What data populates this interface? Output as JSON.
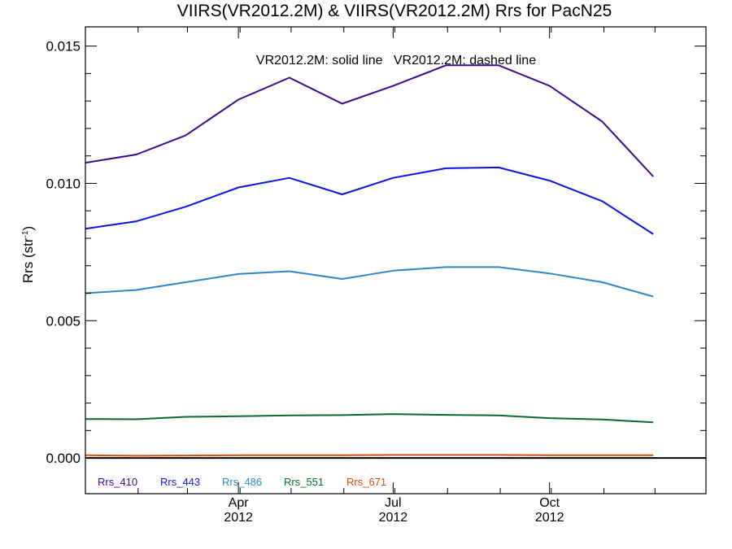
{
  "chart_data": {
    "type": "line",
    "title": "VIIRS(VR2012.2M) & VIIRS(VR2012.2M)  Rrs for PacN25",
    "annotation": "VR2012.2M: solid line   VR2012.2M: dashed line",
    "ylabel": "Rrs (str",
    "ylabel_sup": "-1",
    "ylabel_close": ")",
    "ylim": [
      -0.0013,
      0.0157
    ],
    "xlim": [
      0,
      365
    ],
    "yticks": [
      {
        "v": 0.0,
        "label": "0.000"
      },
      {
        "v": 0.005,
        "label": "0.005"
      },
      {
        "v": 0.01,
        "label": "0.010"
      },
      {
        "v": 0.015,
        "label": "0.015"
      }
    ],
    "xticks": [
      {
        "v": 90,
        "month": "Apr",
        "year": "2012"
      },
      {
        "v": 181,
        "month": "Jul",
        "year": "2012"
      },
      {
        "v": 273,
        "month": "Oct",
        "year": "2012"
      }
    ],
    "x_day_of_year_2012": [
      0,
      30,
      59,
      90,
      120,
      151,
      181,
      212,
      243,
      273,
      304,
      334,
      365
    ],
    "series": [
      {
        "name": "Rrs_410",
        "color": "#3a0a8c",
        "values": [
          0.01075,
          0.01105,
          0.01175,
          0.01305,
          0.01385,
          0.0129,
          0.01355,
          0.0143,
          0.0143,
          0.01355,
          0.01225,
          0.01025,
          null
        ]
      },
      {
        "name": "Rrs_443",
        "color": "#0a14e6",
        "values": [
          0.00835,
          0.00862,
          0.00915,
          0.00985,
          0.0102,
          0.0096,
          0.0102,
          0.01055,
          0.01058,
          0.0101,
          0.00935,
          0.00815,
          null
        ]
      },
      {
        "name": "Rrs_486",
        "color": "#2e86c8",
        "values": [
          0.006,
          0.00612,
          0.0064,
          0.0067,
          0.0068,
          0.00652,
          0.00682,
          0.00695,
          0.00695,
          0.00672,
          0.0064,
          0.00588,
          null
        ]
      },
      {
        "name": "Rrs_551",
        "color": "#0a6b2e",
        "values": [
          0.00142,
          0.00141,
          0.0015,
          0.00152,
          0.00155,
          0.00156,
          0.0016,
          0.00157,
          0.00155,
          0.00145,
          0.0014,
          0.0013,
          null
        ]
      },
      {
        "name": "Rrs_671",
        "color": "#e04a0a",
        "values": [
          0.0001,
          8e-05,
          9e-05,
          0.0001,
          0.0001,
          0.0001,
          0.00011,
          0.00011,
          0.00011,
          0.0001,
          0.0001,
          0.0001,
          null
        ]
      }
    ],
    "zero_line": {
      "value": 0.0,
      "color": "#000000"
    },
    "grid": false,
    "legend": "bottom-left, inline horizontal"
  }
}
